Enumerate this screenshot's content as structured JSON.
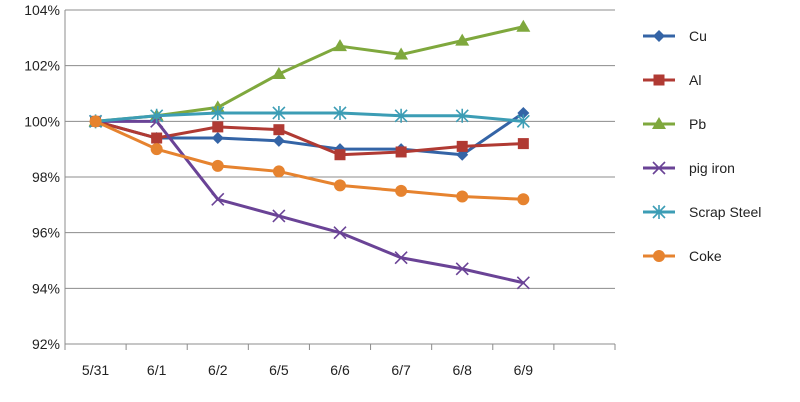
{
  "chart_data": {
    "type": "line",
    "title": "",
    "xlabel": "",
    "ylabel": "",
    "categories": [
      "5/31",
      "6/1",
      "6/2",
      "6/5",
      "6/6",
      "6/7",
      "6/8",
      "6/9"
    ],
    "ylim": [
      92,
      104
    ],
    "yticks": [
      92,
      94,
      96,
      98,
      100,
      102,
      104
    ],
    "ytick_labels": [
      "92%",
      "94%",
      "96%",
      "98%",
      "100%",
      "102%",
      "104%"
    ],
    "grid": "horizontal",
    "legend_position": "right",
    "series": [
      {
        "name": "Cu",
        "color": "#3464A6",
        "marker": "diamond",
        "values": [
          100.0,
          99.4,
          99.4,
          99.3,
          99.0,
          99.0,
          98.8,
          100.3
        ]
      },
      {
        "name": "Al",
        "color": "#B03A33",
        "marker": "square",
        "values": [
          100.0,
          99.4,
          99.8,
          99.7,
          98.8,
          98.9,
          99.1,
          99.2
        ]
      },
      {
        "name": "Pb",
        "color": "#7FA83D",
        "marker": "triangle",
        "values": [
          100.0,
          100.2,
          100.5,
          101.7,
          102.7,
          102.4,
          102.9,
          103.4
        ]
      },
      {
        "name": "pig iron",
        "color": "#6A4396",
        "marker": "x",
        "values": [
          100.0,
          100.0,
          97.2,
          96.6,
          96.0,
          95.1,
          94.7,
          94.2
        ]
      },
      {
        "name": "Scrap Steel",
        "color": "#3C9DB5",
        "marker": "star",
        "values": [
          100.0,
          100.2,
          100.3,
          100.3,
          100.3,
          100.2,
          100.2,
          100.0
        ]
      },
      {
        "name": "Coke",
        "color": "#E6832F",
        "marker": "circle",
        "values": [
          100.0,
          99.0,
          98.4,
          98.2,
          97.7,
          97.5,
          97.3,
          97.2
        ]
      }
    ]
  }
}
